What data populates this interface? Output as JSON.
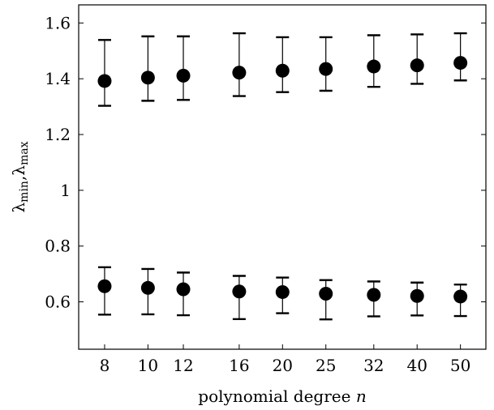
{
  "chart_data": {
    "type": "scatter",
    "title": "",
    "xlabel": "polynomial degree n",
    "ylabel": "λmin,λmax",
    "x_scale": "log",
    "xlim": [
      7.0,
      57.0
    ],
    "ylim": [
      0.43,
      1.665
    ],
    "grid": false,
    "legend": "none",
    "x_ticks": [
      "8",
      "10",
      "12",
      "16",
      "20",
      "25",
      "32",
      "40",
      "50"
    ],
    "y_ticks": [
      "0.6",
      "0.8",
      "1",
      "1.2",
      "1.4",
      "1.6"
    ],
    "series": [
      {
        "x": [
          8,
          10,
          12,
          16,
          20,
          25,
          32,
          40,
          50
        ],
        "y": [
          1.392,
          1.404,
          1.411,
          1.422,
          1.429,
          1.435,
          1.444,
          1.448,
          1.457
        ],
        "y_min": [
          1.303,
          1.321,
          1.324,
          1.338,
          1.352,
          1.357,
          1.371,
          1.382,
          1.394
        ],
        "y_max": [
          1.539,
          1.552,
          1.552,
          1.563,
          1.549,
          1.549,
          1.556,
          1.559,
          1.563
        ]
      },
      {
        "x": [
          8,
          10,
          12,
          16,
          20,
          25,
          32,
          40,
          50
        ],
        "y": [
          0.656,
          0.65,
          0.645,
          0.637,
          0.635,
          0.629,
          0.625,
          0.621,
          0.619
        ],
        "y_min": [
          0.554,
          0.555,
          0.552,
          0.538,
          0.559,
          0.537,
          0.548,
          0.551,
          0.549
        ],
        "y_max": [
          0.724,
          0.718,
          0.705,
          0.693,
          0.687,
          0.678,
          0.673,
          0.669,
          0.662
        ]
      }
    ],
    "colors": {
      "marker": "#000000",
      "axis": "#000000",
      "background": "#ffffff"
    }
  }
}
